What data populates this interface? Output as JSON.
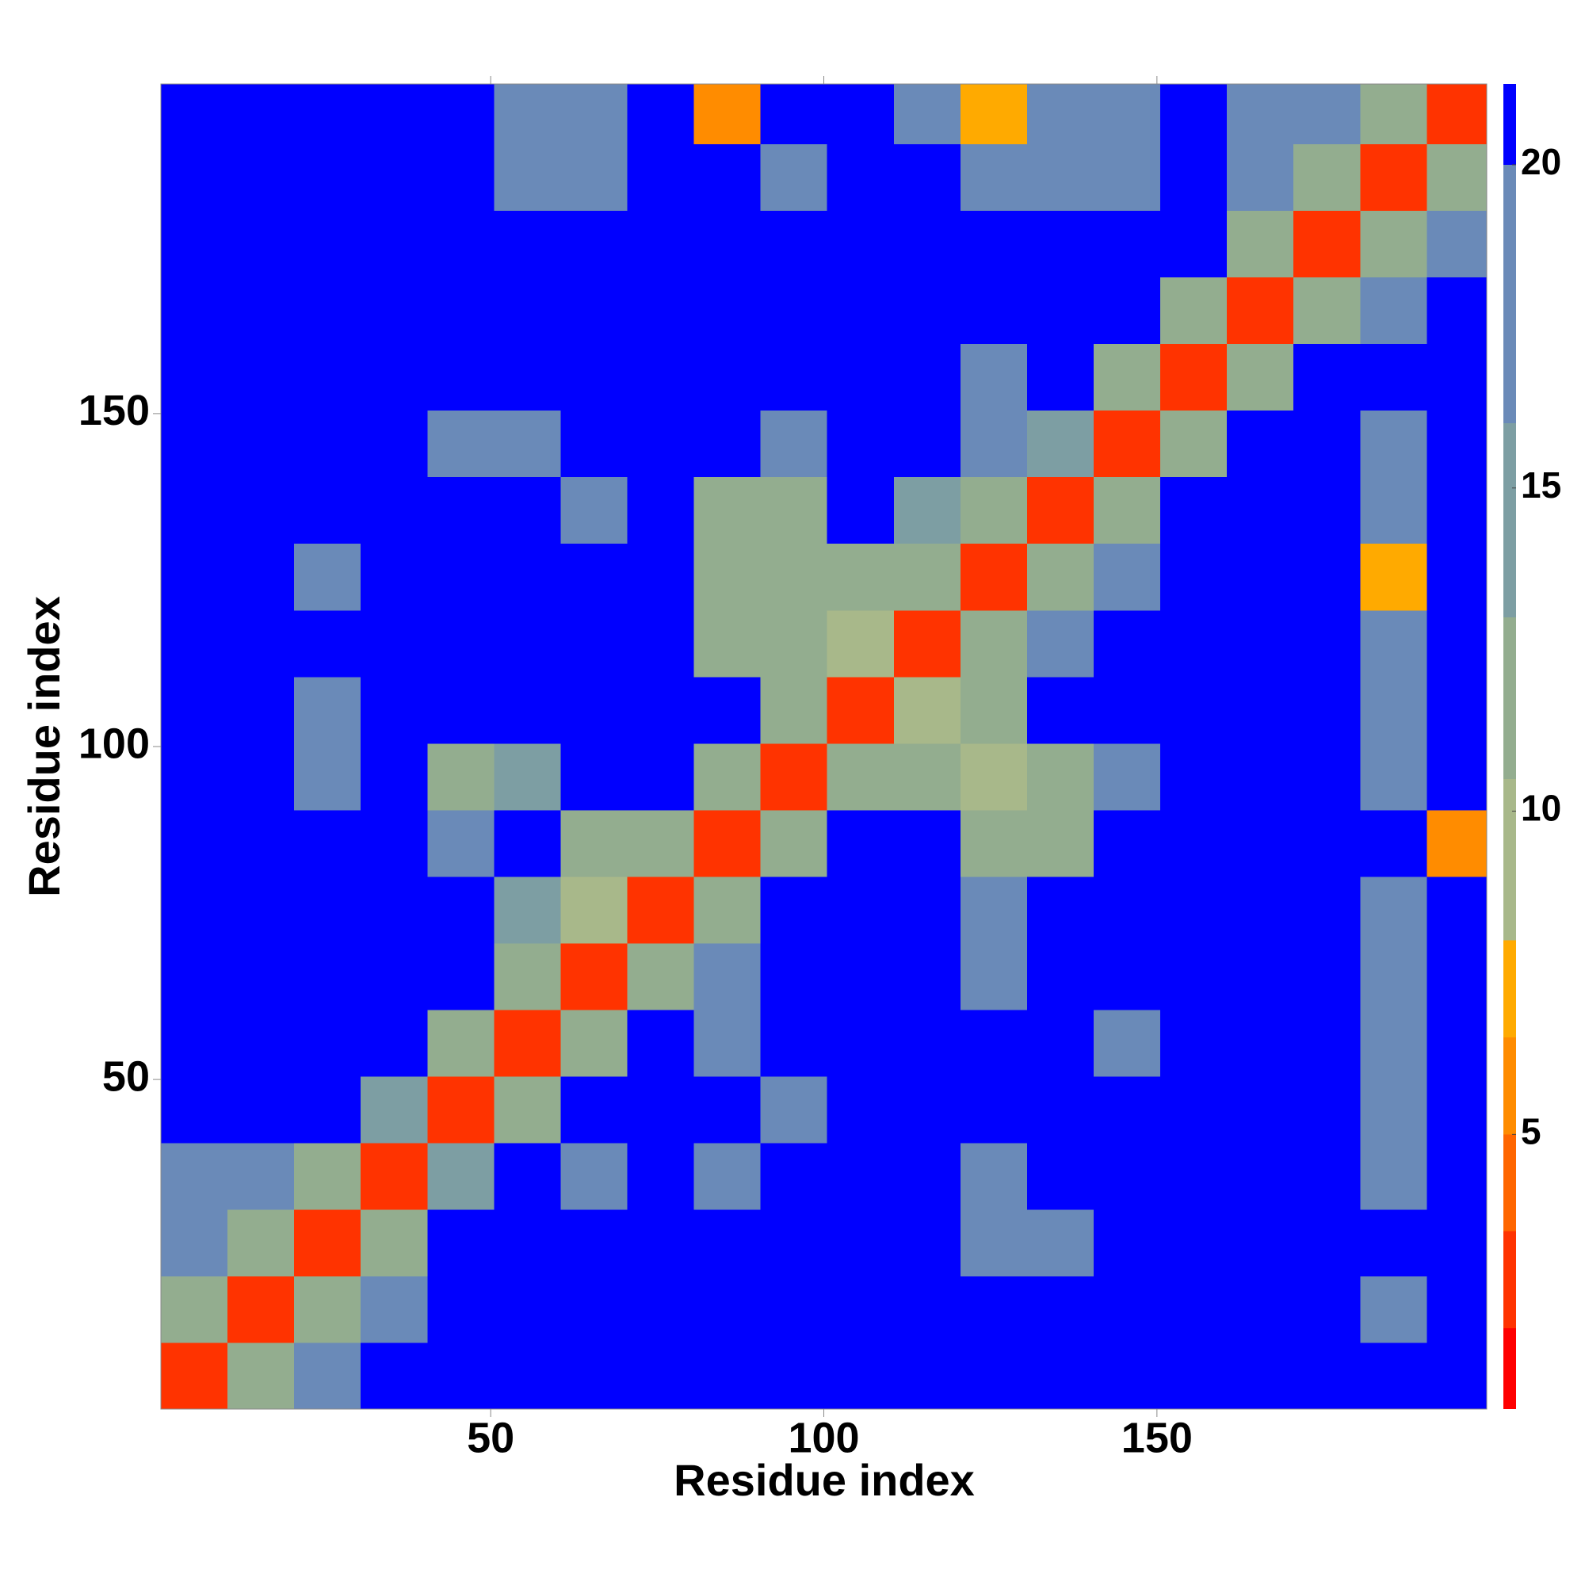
{
  "chart_data": {
    "type": "heatmap",
    "xlabel": "Residue index",
    "ylabel": "Residue index",
    "xlim": [
      0.5,
      199.5
    ],
    "ylim": [
      0.5,
      199.5
    ],
    "xticks": [
      50,
      100,
      150
    ],
    "yticks": [
      50,
      100,
      150
    ],
    "xbins": [
      0.5,
      10.5,
      20.5,
      30.5,
      40.5,
      50.5,
      60.5,
      70.5,
      80.5,
      90.5,
      100.5,
      110.5,
      120.5,
      130.5,
      140.5,
      150.5,
      160.5,
      170.5,
      180.5,
      190.5,
      199.5
    ],
    "ybins": [
      0.5,
      10.5,
      20.5,
      30.5,
      40.5,
      50.5,
      60.5,
      70.5,
      80.5,
      90.5,
      100.5,
      110.5,
      120.5,
      130.5,
      140.5,
      150.5,
      160.5,
      170.5,
      180.5,
      190.5,
      199.5
    ],
    "z": [
      [
        3,
        12,
        18,
        21,
        21,
        21,
        21,
        21,
        21,
        21,
        21,
        21,
        21,
        21,
        21,
        21,
        21,
        21,
        21,
        21
      ],
      [
        12,
        3,
        12,
        18,
        21,
        21,
        21,
        21,
        21,
        21,
        21,
        21,
        21,
        21,
        21,
        21,
        21,
        21,
        19,
        21
      ],
      [
        17,
        12,
        3,
        12,
        21,
        21,
        21,
        21,
        21,
        21,
        21,
        21,
        19,
        19,
        21,
        21,
        21,
        21,
        21,
        21
      ],
      [
        18,
        16,
        12,
        3,
        13,
        21,
        19,
        21,
        19,
        21,
        21,
        21,
        19,
        21,
        21,
        21,
        21,
        21,
        19,
        21
      ],
      [
        21,
        21,
        21,
        13,
        3,
        12,
        21,
        21,
        21,
        19,
        21,
        21,
        21,
        21,
        21,
        21,
        21,
        21,
        19,
        21
      ],
      [
        21,
        21,
        21,
        21,
        12,
        3,
        12,
        21,
        18,
        21,
        21,
        21,
        21,
        21,
        19,
        21,
        21,
        21,
        18,
        21
      ],
      [
        21,
        21,
        21,
        21,
        21,
        12,
        3,
        11,
        17,
        21,
        21,
        21,
        19,
        21,
        21,
        21,
        21,
        21,
        17,
        21
      ],
      [
        21,
        21,
        21,
        21,
        21,
        15,
        10,
        3,
        11,
        21,
        21,
        21,
        19,
        21,
        21,
        21,
        21,
        21,
        18,
        21
      ],
      [
        21,
        21,
        21,
        21,
        18,
        21,
        11,
        11,
        3,
        12,
        21,
        21,
        11,
        11,
        21,
        21,
        21,
        21,
        21,
        6
      ],
      [
        21,
        21,
        19,
        21,
        12,
        14,
        21,
        21,
        12,
        3,
        12,
        11,
        10,
        11,
        19,
        21,
        21,
        21,
        19,
        21
      ],
      [
        21,
        21,
        19,
        21,
        21,
        21,
        21,
        21,
        21,
        12,
        3,
        10,
        12,
        21,
        21,
        21,
        21,
        21,
        19,
        21
      ],
      [
        21,
        21,
        21,
        21,
        21,
        21,
        21,
        21,
        12,
        12,
        10,
        3,
        11,
        17,
        21,
        21,
        21,
        21,
        19,
        21
      ],
      [
        21,
        21,
        19,
        21,
        21,
        21,
        21,
        21,
        11,
        11,
        12,
        11,
        3,
        12,
        19,
        21,
        21,
        21,
        7,
        21
      ],
      [
        21,
        21,
        21,
        21,
        21,
        21,
        19,
        21,
        11,
        12,
        21,
        15,
        12,
        3,
        12,
        21,
        21,
        21,
        19,
        21
      ],
      [
        21,
        21,
        21,
        21,
        19,
        19,
        21,
        21,
        21,
        19,
        21,
        21,
        18,
        13,
        3,
        12,
        21,
        21,
        17,
        21
      ],
      [
        21,
        21,
        21,
        21,
        21,
        21,
        21,
        21,
        21,
        21,
        21,
        21,
        18,
        21,
        12,
        3,
        12,
        21,
        21,
        21
      ],
      [
        21,
        21,
        21,
        21,
        21,
        21,
        21,
        21,
        21,
        21,
        21,
        21,
        21,
        21,
        21,
        12,
        3,
        12,
        18,
        21
      ],
      [
        21,
        21,
        21,
        21,
        21,
        21,
        21,
        21,
        21,
        21,
        21,
        21,
        21,
        21,
        21,
        21,
        12,
        3,
        12,
        17
      ],
      [
        21,
        21,
        21,
        21,
        21,
        19,
        19,
        21,
        21,
        19,
        21,
        21,
        17,
        19,
        19,
        21,
        17,
        12,
        3,
        12
      ],
      [
        21,
        21,
        21,
        21,
        21,
        19,
        19,
        21,
        6,
        21,
        21,
        19,
        7,
        19,
        19,
        21,
        18,
        17,
        12,
        3
      ]
    ],
    "colorbar": {
      "levels": [
        0.75,
        2,
        3.5,
        5,
        6.5,
        8,
        10.5,
        13,
        16,
        20,
        21.25
      ],
      "colors": [
        "#ff0000",
        "#ff3300",
        "#ff6600",
        "#ff8c00",
        "#ffaa00",
        "#a8b88a",
        "#93ad8f",
        "#7d9ea3",
        "#6a8ab8",
        "#0000ff"
      ],
      "ticks": [
        5,
        10,
        15,
        20
      ]
    }
  }
}
